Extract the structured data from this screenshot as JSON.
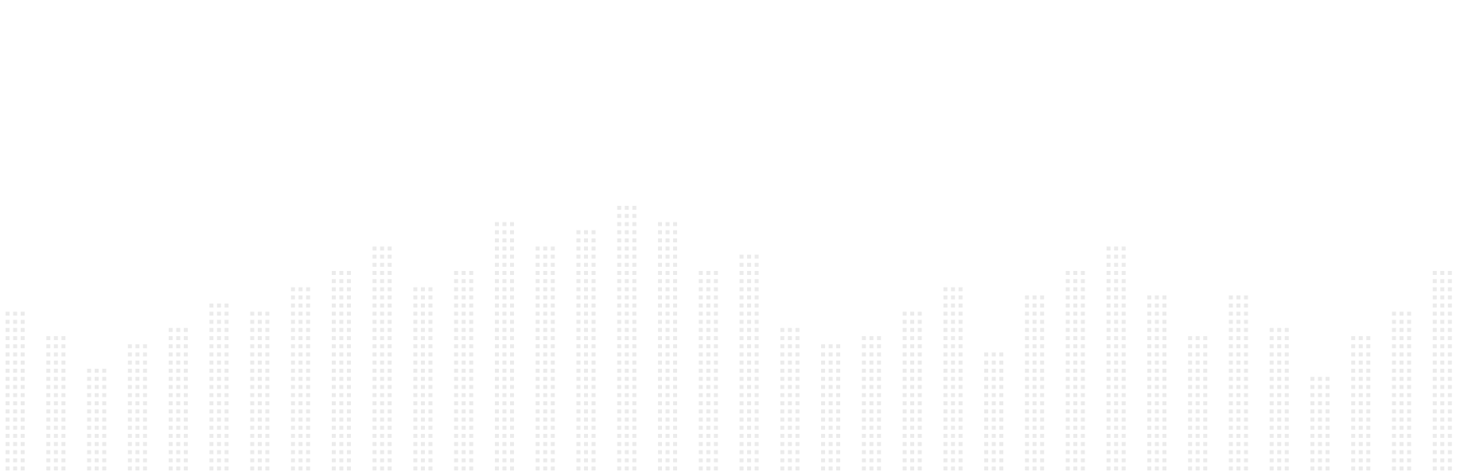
{
  "chart_data": {
    "type": "bar",
    "style": "dot-matrix columns",
    "dot_color": "#ebebeb",
    "background": "#ffffff",
    "dots_across": 3,
    "grid": false,
    "legend": false,
    "values": [
      20,
      17,
      13,
      16,
      18,
      21,
      20,
      23,
      25,
      28,
      23,
      25,
      31,
      28,
      30,
      33,
      31,
      25,
      27,
      18,
      16,
      17,
      20,
      23,
      15,
      22,
      25,
      28,
      22,
      17,
      22,
      18,
      12,
      17,
      20,
      25
    ],
    "ylim": [
      0,
      34
    ]
  }
}
